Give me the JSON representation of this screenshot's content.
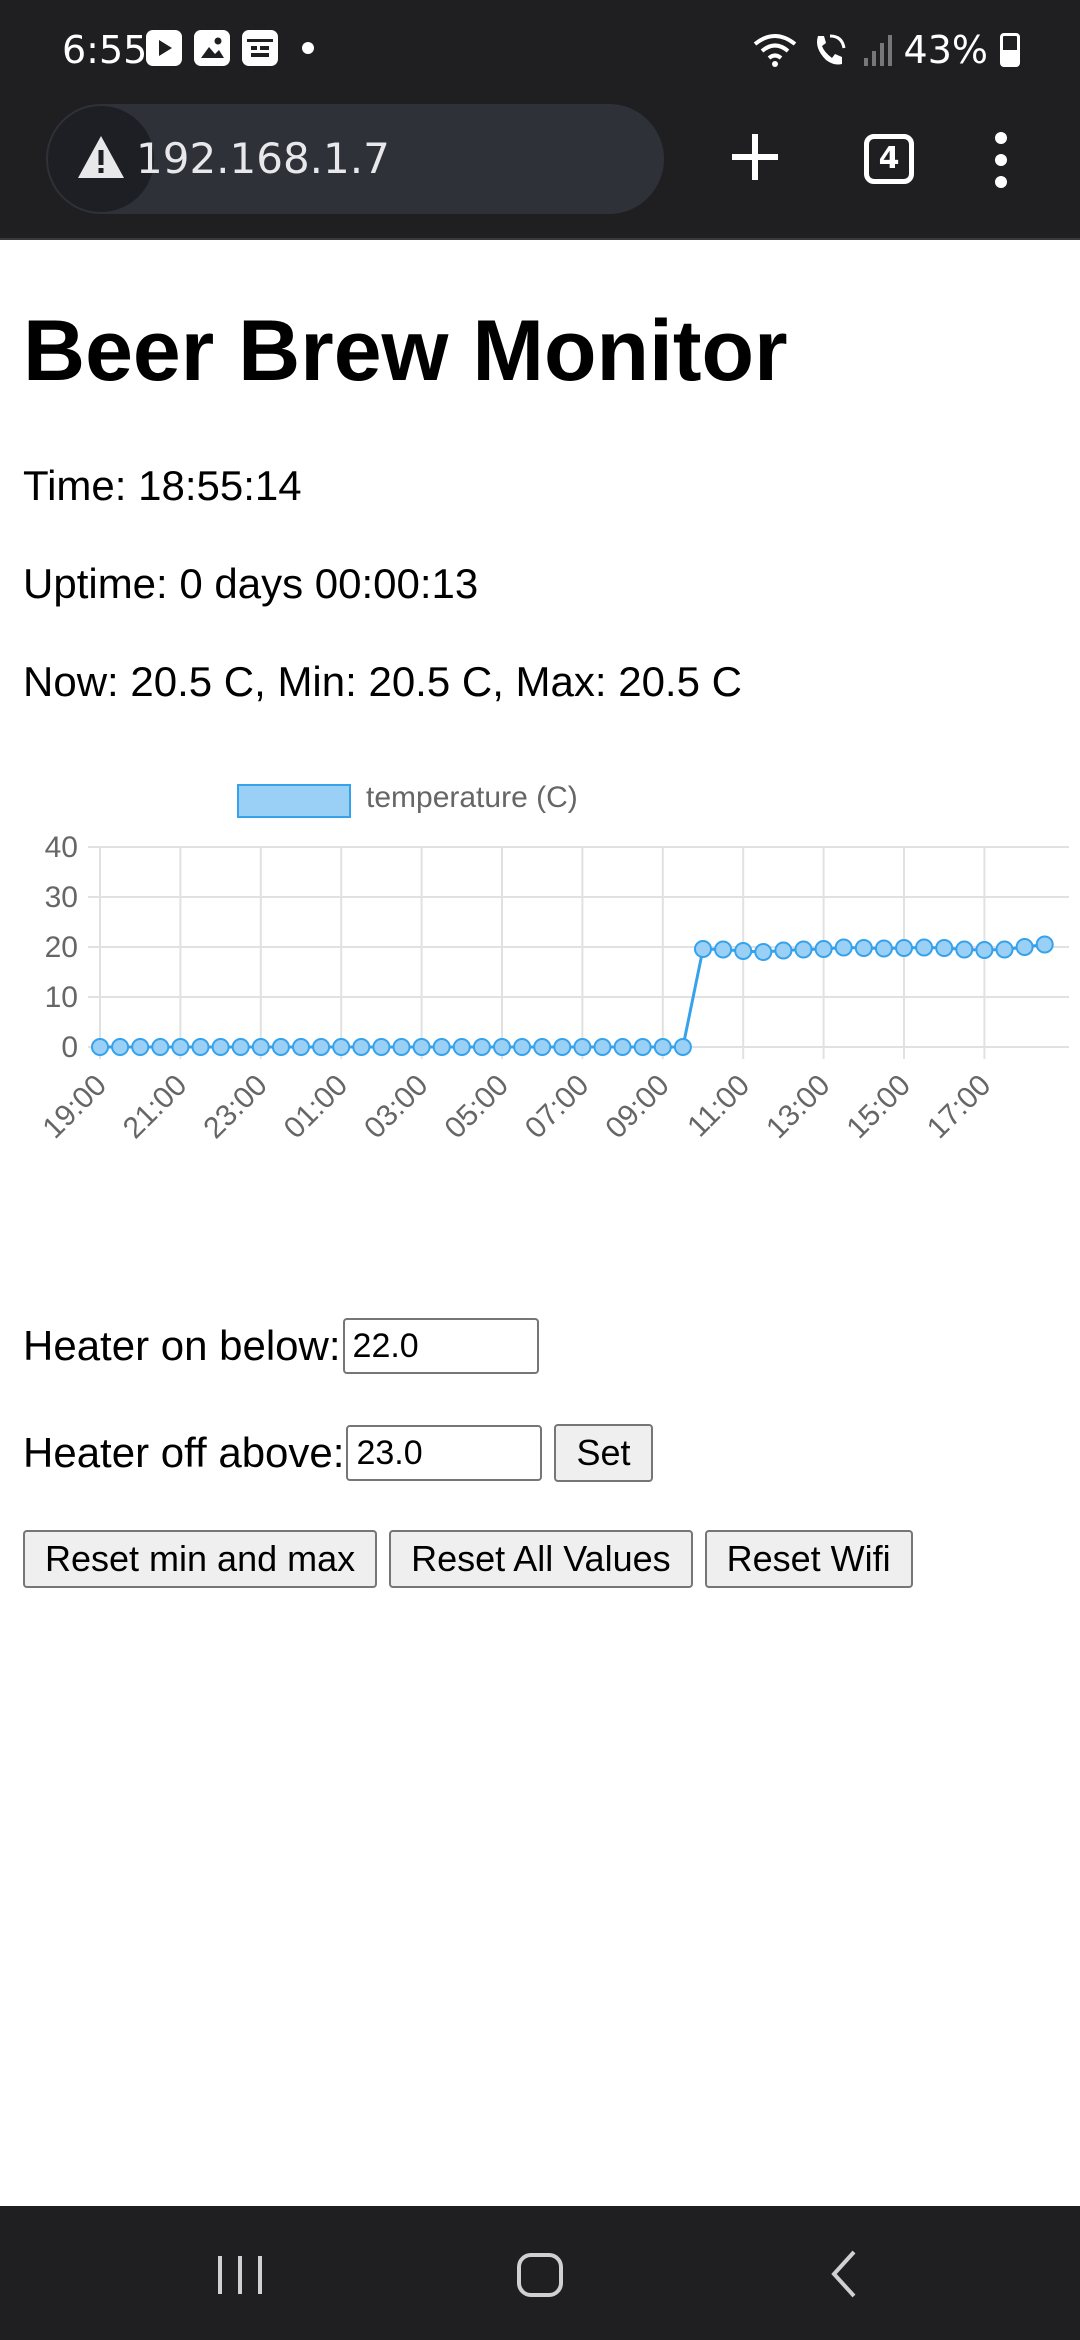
{
  "status_bar": {
    "time": "6:55",
    "battery": "43%",
    "icons": [
      "youtube-icon",
      "gallery-icon",
      "calendar-icon",
      "notification-dot-icon",
      "wifi-icon",
      "wifi-calling-icon",
      "signal-icon",
      "battery-icon"
    ]
  },
  "browser": {
    "url": "192.168.1.7",
    "tab_count": "4",
    "icons": [
      "warning-icon",
      "plus-icon",
      "more-vert-icon"
    ]
  },
  "page": {
    "title": "Beer Brew Monitor",
    "time_line": "Time: 18:55:14",
    "uptime_line": "Uptime: 0 days 00:00:13",
    "temps_line": "Now: 20.5 C, Min: 20.5 C, Max: 20.5 C"
  },
  "form": {
    "heater_on_label": "Heater on below:",
    "heater_on_value": "22.0",
    "heater_off_label": "Heater off above:",
    "heater_off_value": "23.0",
    "set_label": "Set"
  },
  "buttons": {
    "reset_min_max": "Reset min and max",
    "reset_all": "Reset All Values",
    "reset_wifi": "Reset Wifi"
  },
  "nav": {
    "icons": [
      "recent-apps-icon",
      "home-icon",
      "back-icon"
    ]
  },
  "colors": {
    "line": "#36a2eb",
    "point_fill": "#9ad0f5",
    "grid": "#e1e1e1",
    "tick_text": "#666666"
  },
  "chart_data": {
    "type": "line",
    "legend": "temperature (C)",
    "legend_position": "top",
    "ylim": [
      0,
      40
    ],
    "yticks": [
      0,
      10,
      20,
      30,
      40
    ],
    "xtick_labels": [
      "19:00",
      "21:00",
      "23:00",
      "01:00",
      "03:00",
      "05:00",
      "07:00",
      "09:00",
      "11:00",
      "13:00",
      "15:00",
      "17:00"
    ],
    "grid": true,
    "series": [
      {
        "name": "temperature (C)",
        "values": [
          0,
          0,
          0,
          0,
          0,
          0,
          0,
          0,
          0,
          0,
          0,
          0,
          0,
          0,
          0,
          0,
          0,
          0,
          0,
          0,
          0,
          0,
          0,
          0,
          0,
          0,
          0,
          0,
          0,
          0,
          19.6,
          19.5,
          19.2,
          19.0,
          19.3,
          19.5,
          19.6,
          19.9,
          19.8,
          19.7,
          19.8,
          19.9,
          19.8,
          19.5,
          19.4,
          19.5,
          20.0,
          20.5
        ]
      }
    ]
  }
}
